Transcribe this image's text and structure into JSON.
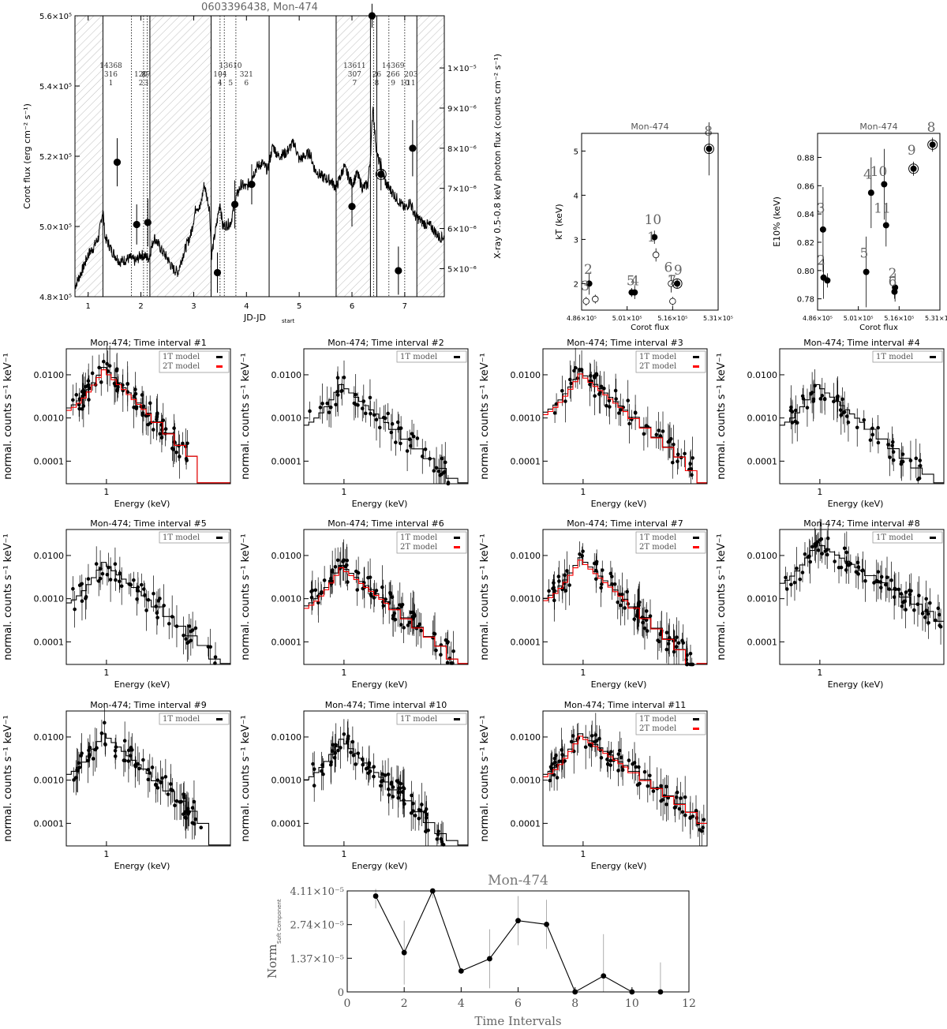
{
  "chart_data": [
    {
      "id": "lightcurve",
      "type": "line",
      "title": "0603396438, Mon-474",
      "xlabel": "JD-JD",
      "xlabel_sub": "start",
      "ylabel": "Corot flux (erg cm⁻² s⁻¹)",
      "y2label": "X-ray 0.5-0.8 keV photon flux (counts cm⁻² s⁻¹)",
      "xlim": [
        0.75,
        7.75
      ],
      "ylim": [
        480000,
        560000
      ],
      "y2lim": [
        4.3e-06,
        1.13e-05
      ],
      "xticks": [
        1,
        2,
        3,
        4,
        5,
        6,
        7
      ],
      "yticks": [
        {
          "v": 480000,
          "label": "4.8×10⁵"
        },
        {
          "v": 500000,
          "label": "5.0×10⁵"
        },
        {
          "v": 520000,
          "label": "5.2×10⁵"
        },
        {
          "v": 540000,
          "label": "5.4×10⁵"
        },
        {
          "v": 560000,
          "label": "5.6×10⁵"
        }
      ],
      "y2ticks": [
        {
          "v": 5e-06,
          "label": "5×10⁻⁶"
        },
        {
          "v": 6e-06,
          "label": "6×10⁻⁶"
        },
        {
          "v": 7e-06,
          "label": "7×10⁻⁶"
        },
        {
          "v": 8e-06,
          "label": "8×10⁻⁶"
        },
        {
          "v": 9e-06,
          "label": "9×10⁻⁶"
        },
        {
          "v": 1e-05,
          "label": "1×10⁻⁵"
        }
      ],
      "corot_curve": [
        [
          0.75,
          483000
        ],
        [
          0.9,
          488000
        ],
        [
          1.0,
          492000
        ],
        [
          1.1,
          494000
        ],
        [
          1.2,
          497000
        ],
        [
          1.28,
          505000
        ],
        [
          1.32,
          497000
        ],
        [
          1.45,
          493000
        ],
        [
          1.6,
          490000
        ],
        [
          1.8,
          491000
        ],
        [
          1.9,
          490000
        ],
        [
          2.0,
          492000
        ],
        [
          2.15,
          491000
        ],
        [
          2.25,
          497000
        ],
        [
          2.4,
          493000
        ],
        [
          2.5,
          491000
        ],
        [
          2.6,
          488000
        ],
        [
          2.7,
          487000
        ],
        [
          2.8,
          492000
        ],
        [
          2.95,
          498000
        ],
        [
          3.05,
          506000
        ],
        [
          3.12,
          505000
        ],
        [
          3.2,
          512000
        ],
        [
          3.3,
          505000
        ],
        [
          3.34,
          492000
        ],
        [
          3.45,
          502000
        ],
        [
          3.5,
          507000
        ],
        [
          3.55,
          500000
        ],
        [
          3.7,
          501000
        ],
        [
          3.8,
          508000
        ],
        [
          3.9,
          512000
        ],
        [
          4.0,
          511000
        ],
        [
          4.1,
          514000
        ],
        [
          4.2,
          517000
        ],
        [
          4.3,
          518000
        ],
        [
          4.4,
          516000
        ],
        [
          4.5,
          523000
        ],
        [
          4.6,
          520000
        ],
        [
          4.75,
          521000
        ],
        [
          4.9,
          524000
        ],
        [
          5.0,
          519000
        ],
        [
          5.1,
          520000
        ],
        [
          5.2,
          521000
        ],
        [
          5.3,
          516000
        ],
        [
          5.45,
          514000
        ],
        [
          5.6,
          513000
        ],
        [
          5.7,
          511000
        ],
        [
          5.85,
          517000
        ],
        [
          6.0,
          512000
        ],
        [
          6.1,
          515000
        ],
        [
          6.2,
          511000
        ],
        [
          6.3,
          512000
        ],
        [
          6.35,
          520000
        ],
        [
          6.4,
          535000
        ],
        [
          6.43,
          527000
        ],
        [
          6.48,
          520000
        ],
        [
          6.55,
          517000
        ],
        [
          6.65,
          512000
        ],
        [
          6.75,
          510000
        ],
        [
          6.85,
          508000
        ],
        [
          7.0,
          505000
        ],
        [
          7.1,
          507000
        ],
        [
          7.2,
          503000
        ],
        [
          7.35,
          501000
        ],
        [
          7.5,
          500000
        ],
        [
          7.65,
          497000
        ],
        [
          7.75,
          497000
        ]
      ],
      "xray_points": [
        {
          "x": 1.55,
          "y": 7.65e-06,
          "err": 6e-07
        },
        {
          "x": 1.92,
          "y": 6.1e-06,
          "err": 5e-07
        },
        {
          "x": 2.13,
          "y": 6.15e-06,
          "err": 6e-07
        },
        {
          "x": 3.45,
          "y": 4.9e-06,
          "err": 5e-07
        },
        {
          "x": 3.78,
          "y": 6.6e-06,
          "err": 6e-07
        },
        {
          "x": 4.1,
          "y": 7.1e-06,
          "err": 5e-07
        },
        {
          "x": 6.0,
          "y": 6.55e-06,
          "err": 5e-07
        },
        {
          "x": 6.38,
          "y": 1.13e-05,
          "err": 3e-07
        },
        {
          "x": 6.55,
          "y": 7.35e-06,
          "err": 4e-07,
          "open": true
        },
        {
          "x": 6.88,
          "y": 4.95e-06,
          "err": 6e-07
        },
        {
          "x": 7.15,
          "y": 8e-06,
          "err": 7e-07
        }
      ],
      "vlines_solid": [
        1.28,
        2.17,
        3.33,
        4.43,
        5.7,
        6.35,
        6.47,
        7.23
      ],
      "vlines_dotted": [
        1.82,
        2.05,
        2.12,
        3.5,
        3.58,
        3.8,
        6.41,
        6.7,
        7.0
      ],
      "hatched": [
        [
          0.75,
          1.28
        ],
        [
          2.17,
          3.33
        ],
        [
          5.7,
          6.35
        ],
        [
          7.23,
          7.75
        ]
      ],
      "interval_labels": [
        {
          "x": 1.43,
          "top": "14368",
          "mid": "316",
          "bot": "1"
        },
        {
          "x": 2.0,
          "top": "",
          "mid": "120",
          "bot": "2"
        },
        {
          "x": 2.1,
          "top": "",
          "mid": "87",
          "bot": "3"
        },
        {
          "x": 3.5,
          "top": "",
          "mid": "104",
          "bot": "4"
        },
        {
          "x": 3.7,
          "top": "13610",
          "mid": "",
          "bot": "5"
        },
        {
          "x": 4.0,
          "top": "",
          "mid": "321",
          "bot": "6"
        },
        {
          "x": 6.05,
          "top": "13611",
          "mid": "307",
          "bot": "7"
        },
        {
          "x": 6.47,
          "top": "",
          "mid": "26",
          "bot": "8"
        },
        {
          "x": 6.78,
          "top": "14369",
          "mid": "266",
          "bot": "9"
        },
        {
          "x": 7.0,
          "top": "",
          "mid": "",
          "bot": "10"
        },
        {
          "x": 7.12,
          "top": "",
          "mid": "203",
          "bot": "11"
        }
      ]
    },
    {
      "id": "kt-vs-flux",
      "type": "scatter",
      "title": "Mon-474",
      "xlabel": "Corot flux",
      "ylabel": "kT (keV)",
      "xlim": [
        486000,
        531000
      ],
      "ylim": [
        1.4,
        5.4
      ],
      "xticks": [
        {
          "v": 486000,
          "label": "4.86×10⁵"
        },
        {
          "v": 501000,
          "label": "5.01×10⁵"
        },
        {
          "v": 516000,
          "label": "5.16×10⁵"
        },
        {
          "v": 531000,
          "label": "5.31×10⁵"
        }
      ],
      "yticks": [
        {
          "v": 2,
          "label": "2"
        },
        {
          "v": 3,
          "label": "3"
        },
        {
          "v": 4,
          "label": "4"
        },
        {
          "v": 5,
          "label": "5"
        }
      ],
      "points": [
        {
          "label": "1",
          "x": 510000,
          "y": 3.05,
          "err": 0.15,
          "filled": true
        },
        {
          "label": "2",
          "x": 488500,
          "y": 2.0,
          "err": 0.25,
          "filled": true
        },
        {
          "label": "3",
          "x": 487500,
          "y": 1.6,
          "err": 0.1,
          "filled": false
        },
        {
          "label": "4",
          "x": 503500,
          "y": 1.8,
          "err": 0.15,
          "filled": true
        },
        {
          "label": "5",
          "x": 502500,
          "y": 1.8,
          "err": 0.1,
          "filled": true
        },
        {
          "label": "6",
          "x": 515500,
          "y": 2.0,
          "err": 0.2,
          "filled": false
        },
        {
          "label": "7",
          "x": 516000,
          "y": 1.6,
          "err": 0.1,
          "filled": false
        },
        {
          "label": "8",
          "x": 528000,
          "y": 5.05,
          "err": 0.6,
          "filled": true,
          "ring": true
        },
        {
          "label": "9",
          "x": 517500,
          "y": 2.0,
          "err": 0.1,
          "filled": true,
          "ring": true
        },
        {
          "label": "10",
          "x": 510500,
          "y": 2.65,
          "err": 0.15,
          "filled": false
        },
        {
          "label": "11",
          "x": 490500,
          "y": 1.65,
          "err": 0.1,
          "filled": false
        }
      ],
      "text_labels": [
        {
          "t": "10",
          "x": 509500,
          "y": 3.35
        },
        {
          "t": "1",
          "x": 509000,
          "y": 2.95
        },
        {
          "t": "2",
          "x": 488200,
          "y": 2.22
        },
        {
          "t": "3",
          "x": 487200,
          "y": 1.85
        },
        {
          "t": "5",
          "x": 502200,
          "y": 1.96
        },
        {
          "t": "4",
          "x": 503600,
          "y": 1.96
        },
        {
          "t": "6",
          "x": 514600,
          "y": 2.27
        },
        {
          "t": "9",
          "x": 517800,
          "y": 2.2
        },
        {
          "t": "7",
          "x": 515800,
          "y": 1.97
        },
        {
          "t": "8",
          "x": 527800,
          "y": 5.35
        }
      ]
    },
    {
      "id": "e10-vs-flux",
      "type": "scatter",
      "title": "Mon-474",
      "xlabel": "Corot flux",
      "ylabel": "E10% (keV)",
      "xlim": [
        486000,
        531000
      ],
      "ylim": [
        0.772,
        0.897
      ],
      "xticks": [
        {
          "v": 486000,
          "label": "4.86×10⁵"
        },
        {
          "v": 501000,
          "label": "5.01×10⁵"
        },
        {
          "v": 516000,
          "label": "5.16×10⁵"
        },
        {
          "v": 531000,
          "label": "5.31×10⁵"
        }
      ],
      "yticks": [
        {
          "v": 0.78,
          "label": "0.78"
        },
        {
          "v": 0.8,
          "label": "0.80"
        },
        {
          "v": 0.82,
          "label": "0.82"
        },
        {
          "v": 0.84,
          "label": "0.84"
        },
        {
          "v": 0.86,
          "label": "0.86"
        },
        {
          "v": 0.88,
          "label": "0.88"
        }
      ],
      "points": [
        {
          "label": "1",
          "x": 488000,
          "y": 0.829,
          "err": 0.03,
          "filled": true
        },
        {
          "label": "2",
          "x": 488200,
          "y": 0.795,
          "err": 0.015,
          "filled": true
        },
        {
          "label": "3",
          "x": 489600,
          "y": 0.793,
          "err": 0.005,
          "filled": true
        },
        {
          "label": "4",
          "x": 505700,
          "y": 0.855,
          "err": 0.025,
          "filled": true
        },
        {
          "label": "5",
          "x": 503900,
          "y": 0.799,
          "err": 0.025,
          "filled": true
        },
        {
          "label": "6",
          "x": 514300,
          "y": 0.785,
          "err": 0.005,
          "filled": true
        },
        {
          "label": "7",
          "x": 514500,
          "y": 0.788,
          "err": 0.01,
          "filled": true
        },
        {
          "label": "8",
          "x": 528300,
          "y": 0.889,
          "err": 0.005,
          "filled": true,
          "ring": true
        },
        {
          "label": "9",
          "x": 521300,
          "y": 0.872,
          "err": 0.005,
          "filled": true,
          "ring": true
        },
        {
          "label": "10",
          "x": 510500,
          "y": 0.861,
          "err": 0.025,
          "filled": true
        },
        {
          "label": "11",
          "x": 511200,
          "y": 0.832,
          "err": 0.015,
          "filled": true
        }
      ],
      "text_labels": [
        {
          "t": "3",
          "x": 487200,
          "y": 0.841
        },
        {
          "t": "2",
          "x": 487300,
          "y": 0.804
        },
        {
          "t": "5",
          "x": 503100,
          "y": 0.809
        },
        {
          "t": "4",
          "x": 504400,
          "y": 0.865
        },
        {
          "t": "10",
          "x": 508500,
          "y": 0.867
        },
        {
          "t": "11",
          "x": 509800,
          "y": 0.841
        },
        {
          "t": "2",
          "x": 513600,
          "y": 0.795
        },
        {
          "t": "6",
          "x": 513600,
          "y": 0.789
        },
        {
          "t": "9",
          "x": 520600,
          "y": 0.882
        },
        {
          "t": "8",
          "x": 527800,
          "y": 0.898
        }
      ]
    },
    {
      "id": "norm-soft",
      "type": "line",
      "title": "Mon-474",
      "xlabel": "Time Intervals",
      "ylabel": "Norm",
      "ylabel_sub": "Soft Component",
      "xlim": [
        0,
        12
      ],
      "ylim": [
        0,
        4.11e-05
      ],
      "xticks": [
        {
          "v": 0,
          "label": "0"
        },
        {
          "v": 2,
          "label": "2"
        },
        {
          "v": 4,
          "label": "4"
        },
        {
          "v": 6,
          "label": "6"
        },
        {
          "v": 8,
          "label": "8"
        },
        {
          "v": 10,
          "label": "10"
        },
        {
          "v": 12,
          "label": "12"
        }
      ],
      "yticks": [
        {
          "v": 0,
          "label": "0"
        },
        {
          "v": 1.37e-05,
          "label": "1.37×10⁻⁵"
        },
        {
          "v": 2.74e-05,
          "label": "2.74×10⁻⁵"
        },
        {
          "v": 4.11e-05,
          "label": "4.11×10⁻⁵"
        }
      ],
      "points": [
        {
          "x": 1,
          "y": 3.9e-05,
          "err": 5e-06
        },
        {
          "x": 2,
          "y": 1.6e-05,
          "err": 1.3e-05
        },
        {
          "x": 3,
          "y": 4.11e-05,
          "err": 3e-06
        },
        {
          "x": 4,
          "y": 8.5e-06,
          "err": 1e-06
        },
        {
          "x": 5,
          "y": 1.35e-05,
          "err": 1.2e-05
        },
        {
          "x": 6,
          "y": 2.9e-05,
          "err": 1e-05
        },
        {
          "x": 7,
          "y": 2.75e-05,
          "err": 1e-05
        },
        {
          "x": 8,
          "y": 0,
          "err": 1e-06
        },
        {
          "x": 9,
          "y": 6.5e-06,
          "err": 1.7e-05
        },
        {
          "x": 10,
          "y": 0,
          "err": 1e-06
        },
        {
          "x": 11,
          "y": 0,
          "err": 1.2e-05
        }
      ]
    }
  ],
  "spectra": {
    "title_prefix": "Mon-474; Time interval #",
    "xlabel": "Energy (keV)",
    "ylabel": "normal. counts s⁻¹ keV⁻¹",
    "xlim": [
      0.5,
      8.5
    ],
    "ylim": [
      3e-05,
      0.04
    ],
    "xtick_label": "1",
    "ytick_labels": [
      "0.0001",
      "0.0010",
      "0.0100"
    ],
    "legend_1t": "1T model",
    "legend_2t": "2T model",
    "colors": {
      "model_1t": "#000000",
      "model_2t": "#ff0000"
    },
    "intervals": [
      {
        "n": "1",
        "two_temp": true,
        "peak": 0.015,
        "right": 0.00013,
        "cut": 4.3,
        "dens": 1.3
      },
      {
        "n": "2",
        "two_temp": false,
        "peak": 0.006,
        "right": 4e-05,
        "cut": 6.5,
        "dens": 0.6
      },
      {
        "n": "3",
        "two_temp": true,
        "peak": 0.012,
        "right": 6e-05,
        "cut": 7.0,
        "dens": 0.7
      },
      {
        "n": "4",
        "two_temp": false,
        "peak": 0.006,
        "right": 5e-05,
        "cut": 6.0,
        "dens": 0.6
      },
      {
        "n": "5",
        "two_temp": false,
        "peak": 0.007,
        "right": 4e-05,
        "cut": 7.0,
        "dens": 0.6
      },
      {
        "n": "6",
        "two_temp": true,
        "peak": 0.006,
        "right": 4e-05,
        "cut": 7.0,
        "dens": 1.3
      },
      {
        "n": "7",
        "two_temp": true,
        "peak": 0.009,
        "right": 3e-05,
        "cut": 7.0,
        "dens": 1.4
      },
      {
        "n": "8",
        "two_temp": false,
        "peak": 0.02,
        "right": 0.0003,
        "cut": 8.5,
        "dens": 1.2
      },
      {
        "n": "9",
        "two_temp": false,
        "peak": 0.012,
        "right": 0.0001,
        "cut": 5.5,
        "dens": 1.1
      },
      {
        "n": "10",
        "two_temp": false,
        "peak": 0.009,
        "right": 4e-05,
        "cut": 6.0,
        "dens": 1.3
      },
      {
        "n": "11",
        "two_temp": true,
        "peak": 0.012,
        "right": 0.0001,
        "cut": 8.5,
        "dens": 1.3
      }
    ]
  }
}
